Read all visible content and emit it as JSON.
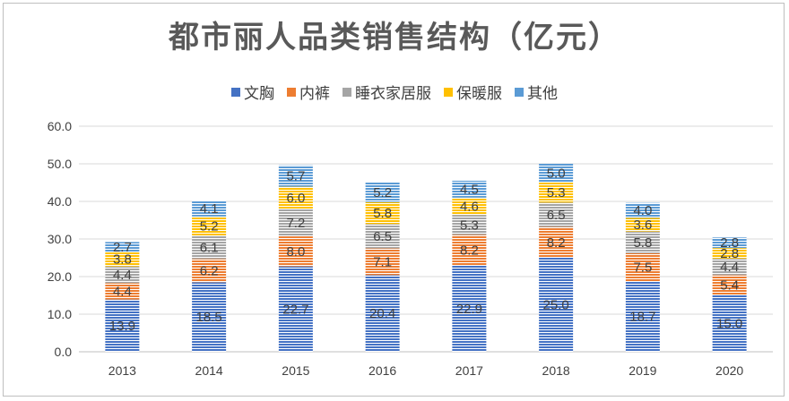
{
  "chart_data": {
    "type": "bar",
    "stacked": true,
    "title": "都市丽人品类销售结构（亿元）",
    "xlabel": "",
    "ylabel": "",
    "categories": [
      "2013",
      "2014",
      "2015",
      "2016",
      "2017",
      "2018",
      "2019",
      "2020"
    ],
    "yticks": [
      "0.0",
      "10.0",
      "20.0",
      "30.0",
      "40.0",
      "50.0",
      "60.0"
    ],
    "ylim": [
      0,
      60
    ],
    "grid": true,
    "legend_position": "top",
    "series": [
      {
        "name": "文胸",
        "color": "#4472C4",
        "values": [
          13.9,
          18.5,
          22.7,
          20.4,
          22.9,
          25.0,
          18.7,
          15.0
        ]
      },
      {
        "name": "内裤",
        "color": "#ED7D31",
        "values": [
          4.4,
          6.2,
          8.0,
          7.1,
          8.2,
          8.2,
          7.5,
          5.4
        ]
      },
      {
        "name": "睡衣家居服",
        "color": "#A5A5A5",
        "values": [
          4.4,
          6.1,
          7.2,
          6.5,
          5.3,
          6.5,
          5.8,
          4.4
        ]
      },
      {
        "name": "保暖服",
        "color": "#FFC000",
        "values": [
          3.8,
          5.2,
          6.0,
          5.8,
          4.6,
          5.3,
          3.6,
          2.8
        ]
      },
      {
        "name": "其他",
        "color": "#5B9BD5",
        "values": [
          2.7,
          4.1,
          5.7,
          5.2,
          4.5,
          5.0,
          4.0,
          2.8
        ]
      }
    ],
    "data_labels": [
      [
        "13.9",
        "18.5",
        "22.7",
        "20.4",
        "22.9",
        "25.0",
        "18.7",
        "15.0"
      ],
      [
        "4.4",
        "6.2",
        "8.0",
        "7.1",
        "8.2",
        "8.2",
        "7.5",
        "5.4"
      ],
      [
        "4.4",
        "6.1",
        "7.2",
        "6.5",
        "5.3",
        "6.5",
        "5.8",
        "4.4"
      ],
      [
        "3.8",
        "5.2",
        "6.0",
        "5.8",
        "4.6",
        "5.3",
        "3.6",
        "2.8"
      ],
      [
        "2.7",
        "4.1",
        "5.7",
        "5.2",
        "4.5",
        "5.0",
        "4.0",
        "2.8"
      ]
    ]
  }
}
